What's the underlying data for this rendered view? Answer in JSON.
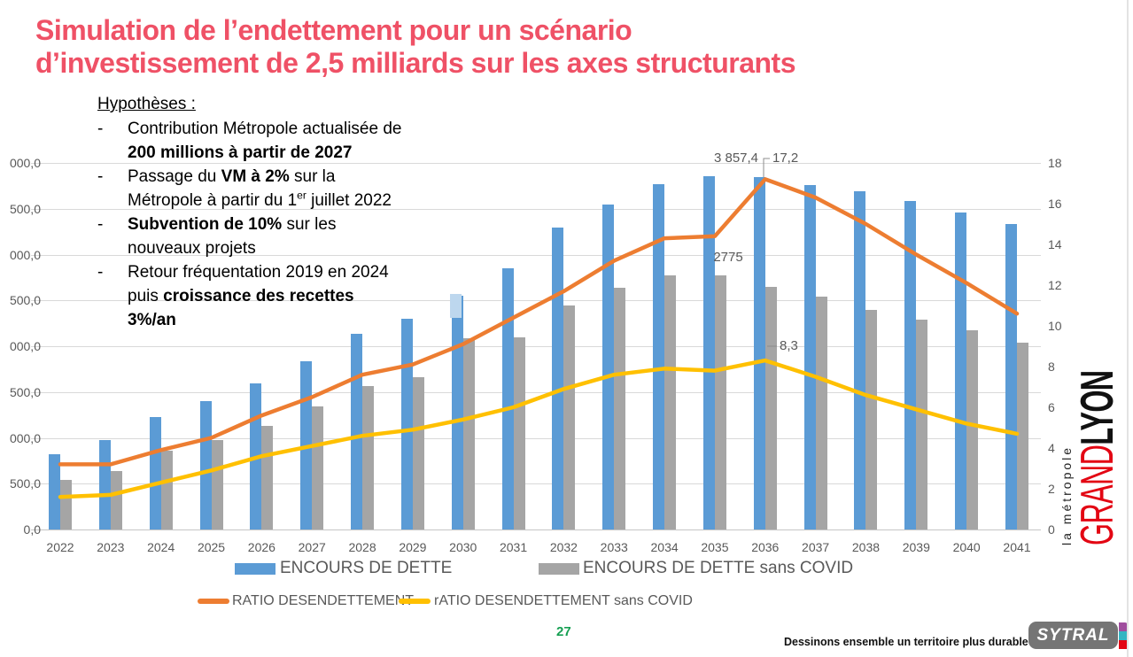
{
  "title": {
    "line1": "Simulation de l’endettement pour un scénario",
    "line2": "d’investissement de 2,5 milliards sur les axes structurants"
  },
  "hypotheses": {
    "title": "Hypothèses :",
    "items": [
      {
        "lines": [
          [
            {
              "t": "Contribution Métropole actualisée de"
            }
          ],
          [
            {
              "t": "200 millions à partir de 2027",
              "b": true
            }
          ]
        ]
      },
      {
        "lines": [
          [
            {
              "t": "Passage du "
            },
            {
              "t": "VM à 2%",
              "b": true
            },
            {
              "t": " sur la"
            }
          ],
          [
            {
              "t": "Métropole à partir du 1"
            },
            {
              "t": "er",
              "sup": true
            },
            {
              "t": " juillet 2022"
            }
          ]
        ]
      },
      {
        "lines": [
          [
            {
              "t": "Subvention de 10%",
              "b": true
            },
            {
              "t": " sur les"
            }
          ],
          [
            {
              "t": "nouveaux projets"
            }
          ]
        ]
      },
      {
        "lines": [
          [
            {
              "t": "Retour fréquentation 2019 en 2024"
            }
          ],
          [
            {
              "t": "puis "
            },
            {
              "t": "croissance des recettes",
              "b": true
            }
          ],
          [
            {
              "t": "3%/an",
              "b": true
            }
          ]
        ]
      }
    ]
  },
  "chart_data": {
    "type": "combo",
    "x": [
      "2022",
      "2023",
      "2024",
      "2025",
      "2026",
      "2027",
      "2028",
      "2029",
      "2030",
      "2031",
      "2032",
      "2033",
      "2034",
      "2035",
      "2036",
      "2037",
      "2038",
      "2039",
      "2040",
      "2041"
    ],
    "series": [
      {
        "name": "ENCOURS DE DETTE",
        "type": "bar",
        "axis": "left",
        "color": "#5B9BD5",
        "values": [
          820,
          980,
          1230,
          1400,
          1590,
          1840,
          2140,
          2300,
          2550,
          2850,
          3290,
          3550,
          3770,
          3857.4,
          3845,
          3760,
          3690,
          3580,
          3460,
          3330
        ]
      },
      {
        "name": "ENCOURS DE DETTE sans COVID",
        "type": "bar",
        "axis": "left",
        "color": "#A5A5A5",
        "values": [
          540,
          640,
          860,
          980,
          1130,
          1340,
          1565,
          1660,
          2090,
          2100,
          2440,
          2640,
          2775,
          2775,
          2650,
          2540,
          2400,
          2290,
          2175,
          2040
        ]
      },
      {
        "name": "RATIO DESENDETTEMENT",
        "type": "line",
        "axis": "right",
        "color": "#ED7D31",
        "values": [
          3.2,
          3.2,
          3.9,
          4.5,
          5.6,
          6.5,
          7.6,
          8.1,
          9.1,
          10.4,
          11.7,
          13.2,
          14.3,
          14.4,
          17.2,
          16.3,
          15.0,
          13.5,
          12.1,
          10.6
        ]
      },
      {
        "name": "rATIO DESENDETTEMENT sans COVID",
        "type": "line",
        "axis": "right",
        "color": "#FFC000",
        "values": [
          1.6,
          1.7,
          2.3,
          2.9,
          3.6,
          4.1,
          4.6,
          4.9,
          5.4,
          6.0,
          6.9,
          7.6,
          7.9,
          7.8,
          8.3,
          7.5,
          6.6,
          5.9,
          5.2,
          4.7
        ]
      }
    ],
    "left_axis": {
      "range": [
        0,
        4000
      ],
      "tick_step": 500,
      "visible_labels": [
        "000,0",
        "500,0",
        "000,0",
        "500,0",
        "000,0",
        "500,0",
        "000,0",
        "500,0",
        "0,0"
      ]
    },
    "right_axis": {
      "range": [
        0,
        18
      ],
      "tick_step": 2,
      "labels": [
        "18",
        "16",
        "14",
        "12",
        "10",
        "8",
        "6",
        "4",
        "2",
        "0"
      ]
    },
    "annotations": [
      {
        "text": "3 857,4",
        "series": "ENCOURS DE DETTE",
        "year": "2035"
      },
      {
        "text": "17,2",
        "series": "RATIO DESENDETTEMENT",
        "year": "2036"
      },
      {
        "text": "2775",
        "series": "ENCOURS DE DETTE sans COVID",
        "year": "2035"
      },
      {
        "text": "8,3",
        "series": "rATIO DESENDETTEMENT sans COVID",
        "year": "2036"
      }
    ],
    "artifact": {
      "year": "2030",
      "color": "#BDD7EE"
    },
    "grid": true,
    "legend_position": "bottom"
  },
  "logos": {
    "grand_lyon": {
      "word1": "GRAND",
      "word2": "LYON",
      "sub": "la métropole"
    },
    "sytral": {
      "label": "SYTRAL"
    }
  },
  "footer": {
    "page_number": "27",
    "tagline": "Dessinons ensemble un territoire plus durable !"
  },
  "colors": {
    "title": "#EF5166",
    "bar_blue": "#5B9BD5",
    "bar_gray": "#A5A5A5",
    "line_orange": "#ED7D31",
    "line_yellow": "#FFC000",
    "axis_text": "#595959",
    "page_number_green": "#169F52",
    "grand_lyon_red": "#E30613",
    "sytral_gray": "#757575",
    "sytral_purple": "#A04E9E",
    "sytral_teal": "#35B5C2",
    "sytral_red": "#E30613",
    "artifact_blue": "#BDD7EE"
  }
}
